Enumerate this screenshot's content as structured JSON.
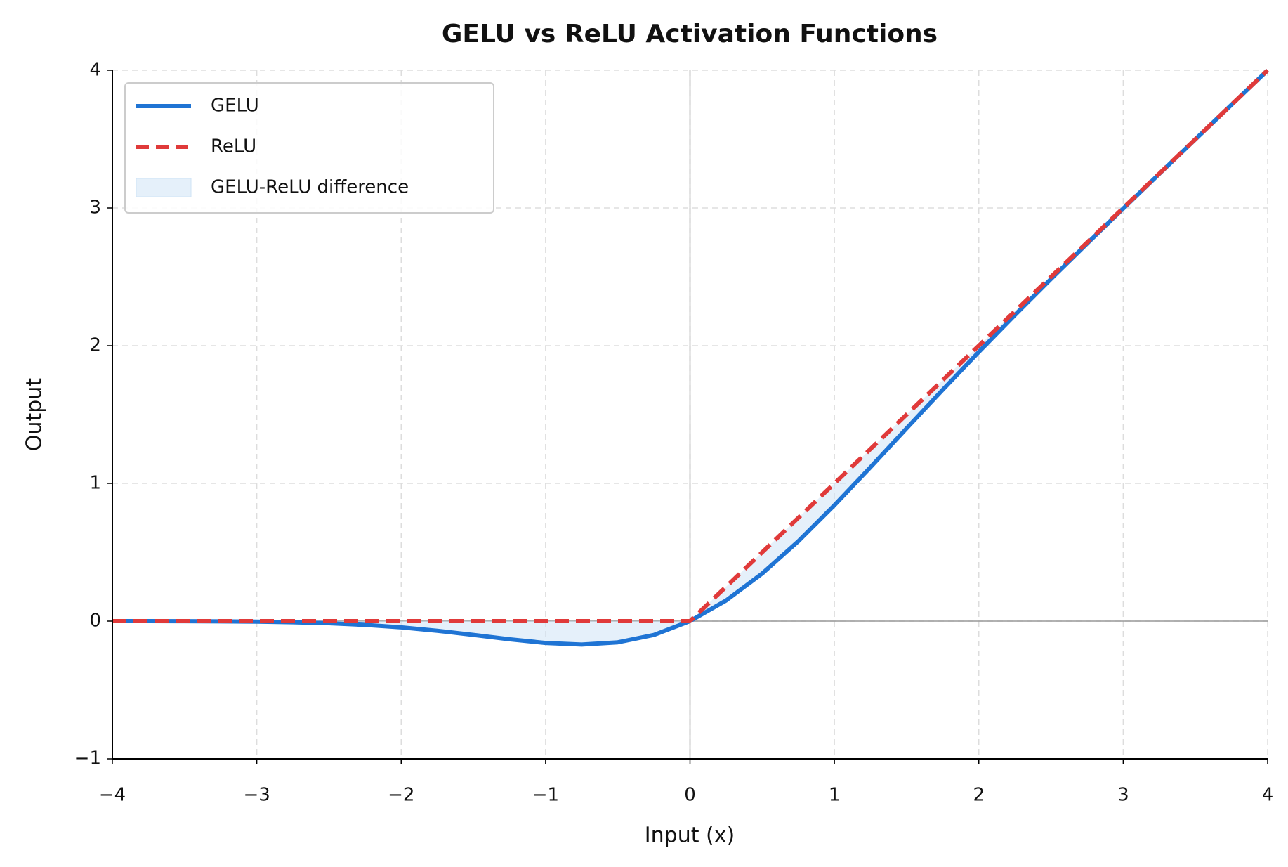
{
  "chart_data": {
    "type": "line",
    "title": "GELU vs ReLU Activation Functions",
    "x_label": "Input (x)",
    "y_label": "Output",
    "x": [
      -4,
      -3.75,
      -3.5,
      -3.25,
      -3,
      -2.75,
      -2.5,
      -2.25,
      -2,
      -1.75,
      -1.5,
      -1.25,
      -1,
      -0.75,
      -0.5,
      -0.25,
      0,
      0.25,
      0.5,
      0.75,
      1,
      1.25,
      1.5,
      1.75,
      2,
      2.25,
      2.5,
      2.75,
      3,
      3.25,
      3.5,
      3.75,
      4
    ],
    "series": [
      {
        "name": "GELU",
        "color": "#1f74d4",
        "style": "solid",
        "values": [
          -0.0001,
          -0.0003,
          -0.0008,
          -0.0019,
          -0.004,
          -0.0082,
          -0.0155,
          -0.0275,
          -0.0455,
          -0.0701,
          -0.1002,
          -0.1321,
          -0.1587,
          -0.17,
          -0.1543,
          -0.1003,
          0,
          0.1497,
          0.3457,
          0.58,
          0.8413,
          1.1179,
          1.3998,
          1.6799,
          1.9545,
          2.2225,
          2.4845,
          2.7418,
          2.996,
          3.2481,
          3.4992,
          3.7497,
          3.9999
        ]
      },
      {
        "name": "ReLU",
        "color": "#e03a3a",
        "style": "dashed",
        "values": [
          0,
          0,
          0,
          0,
          0,
          0,
          0,
          0,
          0,
          0,
          0,
          0,
          0,
          0,
          0,
          0,
          0,
          0.25,
          0.5,
          0.75,
          1,
          1.25,
          1.5,
          1.75,
          2,
          2.25,
          2.5,
          2.75,
          3,
          3.25,
          3.5,
          3.75,
          4
        ]
      }
    ],
    "fill": {
      "name": "GELU-ReLU difference",
      "color": "#cfe3f6"
    },
    "xlim": [
      -4,
      4
    ],
    "ylim": [
      -1,
      4
    ],
    "xticks": [
      {
        "value": -4,
        "label": "−4"
      },
      {
        "value": -3,
        "label": "−3"
      },
      {
        "value": -2,
        "label": "−2"
      },
      {
        "value": -1,
        "label": "−1"
      },
      0,
      1,
      2,
      3,
      4
    ],
    "yticks": [
      {
        "value": -1,
        "label": "−1"
      },
      0,
      1,
      2,
      3,
      4
    ],
    "grid": true,
    "legend": "upper left"
  }
}
